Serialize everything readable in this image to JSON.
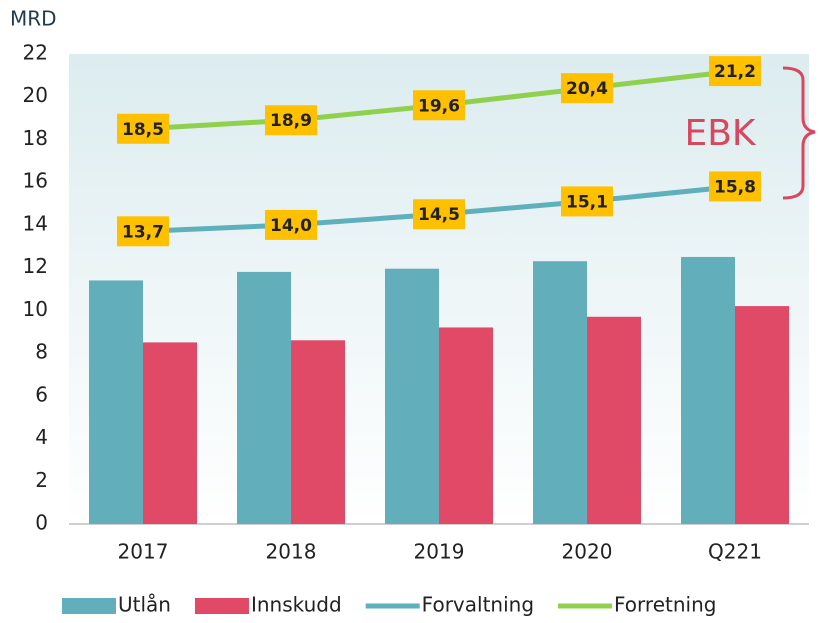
{
  "chart_data": {
    "type": "combo",
    "y_label": "MRD",
    "annotation": "EBK",
    "categories": [
      "2017",
      "2018",
      "2019",
      "2020",
      "Q221"
    ],
    "series": [
      {
        "name": "Utlån",
        "type": "bar",
        "color": "#62aebb",
        "values": [
          11.4,
          11.8,
          11.95,
          12.3,
          12.5
        ]
      },
      {
        "name": "Innskudd",
        "type": "bar",
        "color": "#e04a66",
        "values": [
          8.5,
          8.6,
          9.2,
          9.7,
          10.2
        ]
      },
      {
        "name": "Forvaltning",
        "type": "line",
        "color": "#5fb0bd",
        "values": [
          13.7,
          14.0,
          14.5,
          15.1,
          15.8
        ],
        "value_labels": [
          "13,7",
          "14,0",
          "14,5",
          "15,1",
          "15,8"
        ]
      },
      {
        "name": "Forretning",
        "type": "line",
        "color": "#8fd14f",
        "values": [
          18.5,
          18.9,
          19.6,
          20.4,
          21.2
        ],
        "value_labels": [
          "18,5",
          "18,9",
          "19,6",
          "20,4",
          "21,2"
        ]
      }
    ],
    "ylim": [
      0,
      22
    ],
    "yticks": [
      0,
      2,
      4,
      6,
      8,
      10,
      12,
      14,
      16,
      18,
      20,
      22
    ],
    "grid": false,
    "label_color": "#ffc000"
  }
}
